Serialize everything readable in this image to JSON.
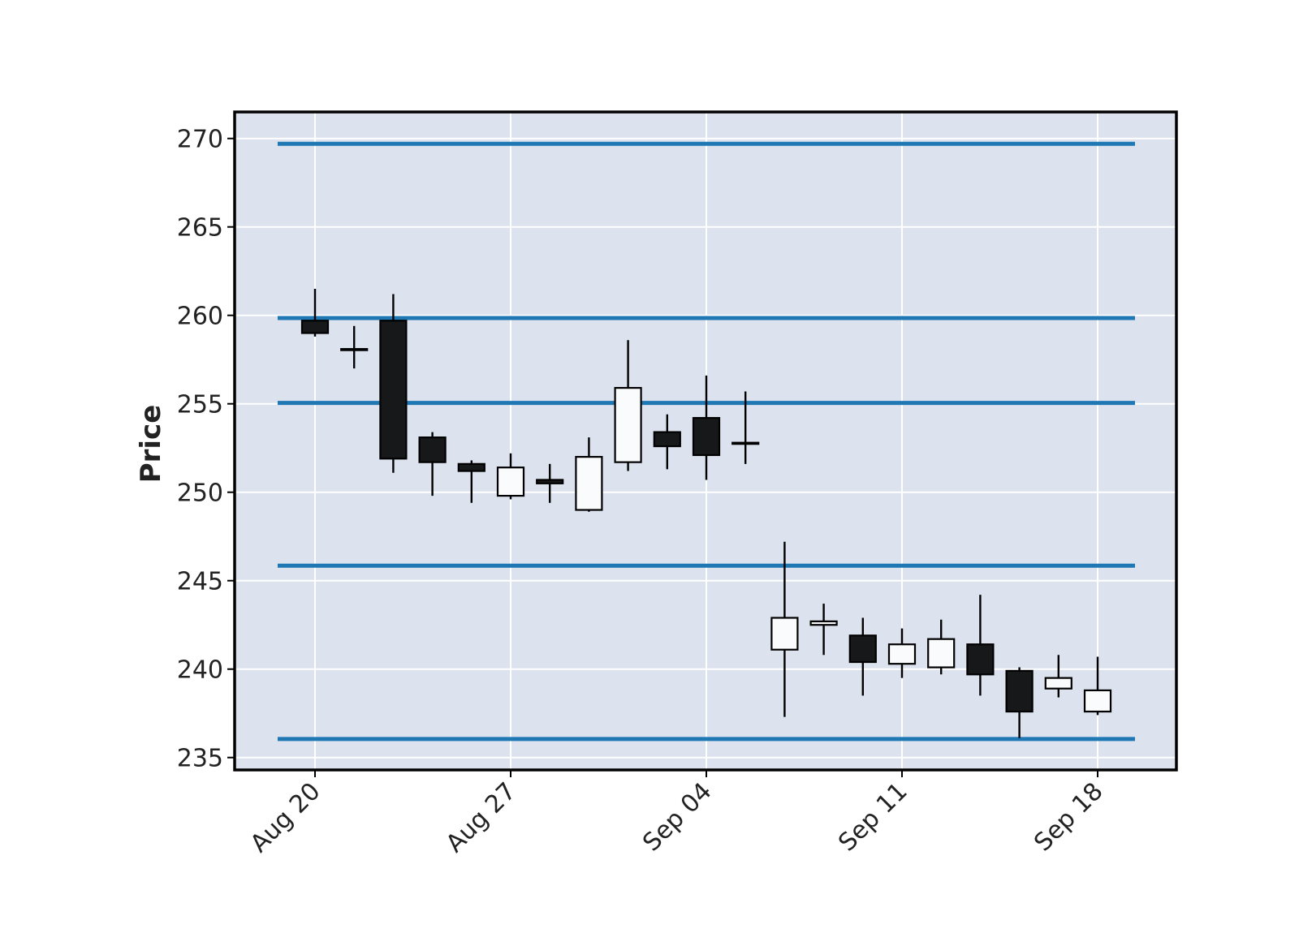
{
  "chart_data": {
    "type": "candlestick",
    "title": "",
    "xlabel": "",
    "ylabel": "Price",
    "ylim": [
      234.3,
      271.5
    ],
    "grid": true,
    "colors": {
      "background": "#dce2ee",
      "grid": "#ffffff",
      "up_candle": "#fafbfd",
      "down_candle": "#17181a",
      "candle_edge": "#000000",
      "hlines": "#1f77b4"
    },
    "x_ticks": [
      {
        "label": "Aug 20",
        "index": 0
      },
      {
        "label": "Aug 27",
        "index": 5
      },
      {
        "label": "Sep 04",
        "index": 10
      },
      {
        "label": "Sep 11",
        "index": 15
      },
      {
        "label": "Sep 18",
        "index": 20
      }
    ],
    "y_ticks": [
      235,
      240,
      245,
      250,
      255,
      260,
      265,
      270
    ],
    "hlines": [
      269.7,
      259.85,
      255.05,
      245.85,
      236.05
    ],
    "candles": [
      {
        "date": "Aug 20",
        "open": 259.7,
        "high": 261.5,
        "low": 258.8,
        "close": 259.0
      },
      {
        "date": "Aug 21",
        "open": 258.1,
        "high": 259.4,
        "low": 257.0,
        "close": 258.1
      },
      {
        "date": "Aug 22",
        "open": 259.7,
        "high": 261.2,
        "low": 251.1,
        "close": 251.9
      },
      {
        "date": "Aug 23",
        "open": 253.1,
        "high": 253.4,
        "low": 249.8,
        "close": 251.7
      },
      {
        "date": "Aug 24",
        "open": 251.6,
        "high": 251.8,
        "low": 249.4,
        "close": 251.2
      },
      {
        "date": "Aug 27",
        "open": 249.8,
        "high": 252.2,
        "low": 249.6,
        "close": 251.4
      },
      {
        "date": "Aug 28",
        "open": 250.7,
        "high": 251.6,
        "low": 249.4,
        "close": 250.5
      },
      {
        "date": "Aug 29",
        "open": 249.0,
        "high": 253.1,
        "low": 248.9,
        "close": 252.0
      },
      {
        "date": "Aug 30",
        "open": 251.7,
        "high": 258.6,
        "low": 251.2,
        "close": 255.9
      },
      {
        "date": "Aug 31",
        "open": 253.4,
        "high": 254.4,
        "low": 251.3,
        "close": 252.6
      },
      {
        "date": "Sep 04",
        "open": 254.2,
        "high": 256.6,
        "low": 250.7,
        "close": 252.1
      },
      {
        "date": "Sep 05",
        "open": 252.8,
        "high": 255.7,
        "low": 251.6,
        "close": 252.8
      },
      {
        "date": "Sep 06",
        "open": 241.1,
        "high": 247.2,
        "low": 237.3,
        "close": 242.9
      },
      {
        "date": "Sep 07",
        "open": 242.5,
        "high": 243.7,
        "low": 240.8,
        "close": 242.7
      },
      {
        "date": "Sep 10",
        "open": 241.9,
        "high": 242.9,
        "low": 238.5,
        "close": 240.4
      },
      {
        "date": "Sep 11",
        "open": 240.3,
        "high": 242.3,
        "low": 239.5,
        "close": 241.4
      },
      {
        "date": "Sep 12",
        "open": 240.1,
        "high": 242.8,
        "low": 239.7,
        "close": 241.7
      },
      {
        "date": "Sep 13",
        "open": 241.4,
        "high": 244.2,
        "low": 238.5,
        "close": 239.7
      },
      {
        "date": "Sep 14",
        "open": 239.9,
        "high": 240.1,
        "low": 236.1,
        "close": 237.6
      },
      {
        "date": "Sep 17",
        "open": 238.9,
        "high": 240.8,
        "low": 238.4,
        "close": 239.5
      },
      {
        "date": "Sep 18",
        "open": 237.6,
        "high": 240.7,
        "low": 237.4,
        "close": 238.8
      }
    ]
  }
}
